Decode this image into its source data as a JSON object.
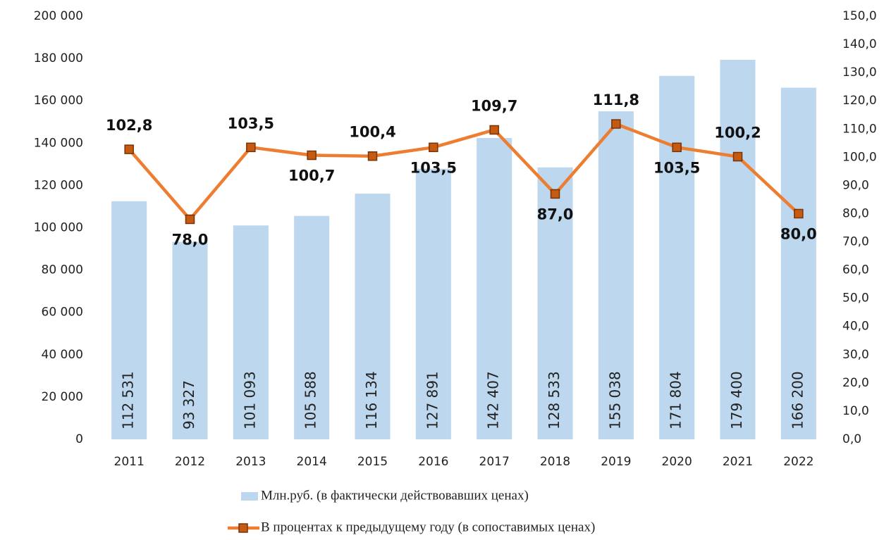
{
  "chart_data": {
    "type": "bar",
    "categories": [
      "2011",
      "2012",
      "2013",
      "2014",
      "2015",
      "2016",
      "2017",
      "2018",
      "2019",
      "2020",
      "2021",
      "2022"
    ],
    "series": [
      {
        "name": "Млн.руб. (в фактически действовавших ценах)",
        "type": "bar",
        "color": "#bdd7ee",
        "values": [
          112531,
          93327,
          101093,
          105588,
          116134,
          127891,
          142407,
          128533,
          155038,
          171804,
          179400,
          166200
        ],
        "value_labels": [
          "112 531",
          "93 327",
          "101 093",
          "105 588",
          "116 134",
          "127 891",
          "142 407",
          "128 533",
          "155 038",
          "171 804",
          "179 400",
          "166 200"
        ]
      },
      {
        "name": "В процентах к предыдущему году (в сопоставимых ценах)",
        "type": "line",
        "axis": "y2",
        "color": "#ed7d31",
        "marker_color": "#c55a11",
        "values": [
          102.8,
          78.0,
          103.5,
          100.7,
          100.4,
          103.5,
          109.7,
          87.0,
          111.8,
          103.5,
          100.2,
          80.0
        ],
        "value_labels": [
          "102,8",
          "78,0",
          "103,5",
          "100,7",
          "100,4",
          "103,5",
          "109,7",
          "87,0",
          "111,8",
          "103,5",
          "100,2",
          "80,0"
        ]
      }
    ],
    "ylim": [
      0,
      200000
    ],
    "yticks": [
      0,
      {
        "value": 20000,
        "label": "20 000"
      },
      {
        "value": 40000,
        "label": "40 000"
      },
      {
        "value": 60000,
        "label": "60 000"
      },
      {
        "value": 80000,
        "label": "80 000"
      },
      {
        "value": 100000,
        "label": "100 000"
      },
      {
        "value": 120000,
        "label": "120 000"
      },
      {
        "value": 140000,
        "label": "140 000"
      },
      {
        "value": 160000,
        "label": "160 000"
      },
      {
        "value": 180000,
        "label": "180 000"
      },
      {
        "value": 200000,
        "label": "200 000"
      }
    ],
    "y2lim": [
      0,
      150
    ],
    "y2ticks": [
      {
        "value": 0,
        "label": "0,0"
      },
      {
        "value": 10,
        "label": "10,0"
      },
      {
        "value": 20,
        "label": "20,0"
      },
      {
        "value": 30,
        "label": "30,0"
      },
      {
        "value": 40,
        "label": "40,0"
      },
      {
        "value": 50,
        "label": "50,0"
      },
      {
        "value": 60,
        "label": "60,0"
      },
      {
        "value": 70,
        "label": "70,0"
      },
      {
        "value": 80,
        "label": "80,0"
      },
      {
        "value": 90,
        "label": "90,0"
      },
      {
        "value": 100,
        "label": "100,0"
      },
      {
        "value": 110,
        "label": "110,0"
      },
      {
        "value": 120,
        "label": "120,0"
      },
      {
        "value": 130,
        "label": "130,0"
      },
      {
        "value": 140,
        "label": "140,0"
      },
      {
        "value": 150,
        "label": "150,0"
      }
    ],
    "grid": false,
    "legend": "bottom"
  }
}
